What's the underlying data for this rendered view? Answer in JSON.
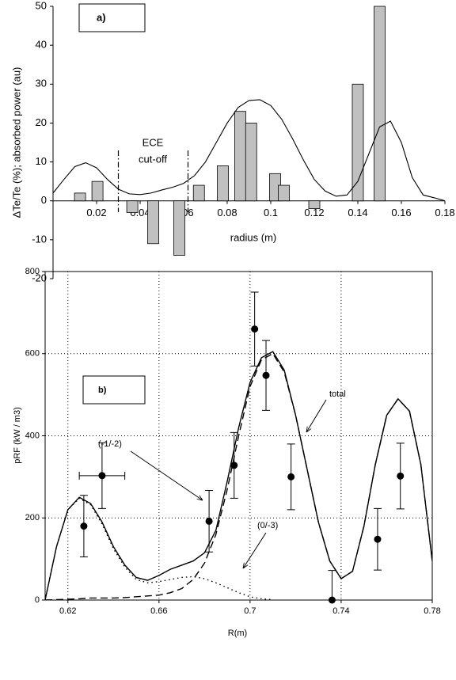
{
  "chart_data": [
    {
      "type": "bar",
      "label": "a)",
      "xlabel": "radius (m)",
      "ylabel": "ΔTe/Te (%); absorbed power (au)",
      "annotation": [
        "ECE",
        "cut-off"
      ],
      "x": [
        0.0124,
        0.0204,
        0.0364,
        0.046,
        0.058,
        0.067,
        0.078,
        0.086,
        0.091,
        0.102,
        0.106,
        0.12,
        0.14,
        0.15
      ],
      "values": [
        2,
        5,
        -3,
        -11,
        -14,
        4,
        9,
        23,
        20,
        7,
        4,
        -2,
        30,
        50
      ],
      "color": "#c0c0c0",
      "line_x": [
        0,
        0.005,
        0.01,
        0.015,
        0.02,
        0.025,
        0.03,
        0.035,
        0.04,
        0.045,
        0.05,
        0.055,
        0.06,
        0.065,
        0.07,
        0.075,
        0.08,
        0.085,
        0.09,
        0.095,
        0.1,
        0.105,
        0.11,
        0.115,
        0.12,
        0.125,
        0.13,
        0.135,
        0.14,
        0.145,
        0.15,
        0.155,
        0.16,
        0.165,
        0.17,
        0.175,
        0.18
      ],
      "line_values": [
        2,
        5.5,
        8.8,
        9.8,
        8.5,
        5.5,
        3,
        1.8,
        1.6,
        2,
        2.8,
        3.5,
        4.5,
        6.5,
        10,
        15,
        20,
        24,
        25.8,
        26,
        24.5,
        21,
        16,
        10.5,
        5.5,
        2.5,
        1.2,
        1.5,
        5,
        12,
        19,
        20.5,
        15,
        6,
        1.5,
        0.8,
        0
      ],
      "line_color": "#000000",
      "vlines": [
        0.03,
        0.062
      ],
      "xlim": [
        0,
        0.18
      ],
      "xticks": [
        0.02,
        0.04,
        0.06,
        0.08,
        0.1,
        0.12,
        0.14,
        0.16,
        0.18
      ],
      "ylim": [
        -20,
        50
      ],
      "yticks": [
        -20,
        -10,
        0,
        10,
        20,
        30,
        40,
        50
      ]
    },
    {
      "type": "line",
      "label": "b)",
      "xlabel": "R(m)",
      "ylabel": "pRF (kW / m3)",
      "grid": true,
      "x": [
        0.61,
        0.615,
        0.62,
        0.625,
        0.63,
        0.635,
        0.64,
        0.645,
        0.65,
        0.655,
        0.66,
        0.665,
        0.67,
        0.675,
        0.68,
        0.685,
        0.69,
        0.695,
        0.7,
        0.705,
        0.71,
        0.715,
        0.72,
        0.725,
        0.73,
        0.735,
        0.74,
        0.745,
        0.75,
        0.755,
        0.76,
        0.765,
        0.77,
        0.775,
        0.78
      ],
      "series": [
        {
          "name": "total",
          "color": "#000000",
          "dash": "solid",
          "values": [
            0,
            130,
            220,
            250,
            235,
            190,
            130,
            85,
            55,
            48,
            60,
            75,
            85,
            95,
            115,
            170,
            290,
            420,
            530,
            590,
            605,
            560,
            450,
            320,
            190,
            95,
            52,
            70,
            180,
            330,
            450,
            490,
            460,
            330,
            95
          ]
        },
        {
          "name": "(-1/-2)",
          "color": "#000000",
          "dash": "dashed",
          "values": [
            0,
            1,
            2,
            3,
            5,
            5,
            5,
            6,
            8,
            10,
            12,
            18,
            28,
            50,
            90,
            160,
            270,
            400,
            520,
            585,
            600,
            555,
            450,
            320,
            190,
            95,
            52,
            70,
            180,
            330,
            450,
            490,
            460,
            330,
            95
          ]
        },
        {
          "name": "(0/-3)",
          "color": "#000000",
          "dash": "dotted",
          "values": [
            0,
            130,
            220,
            248,
            232,
            185,
            125,
            80,
            50,
            42,
            45,
            50,
            55,
            57,
            52,
            42,
            30,
            18,
            8,
            3,
            1,
            null,
            null,
            null,
            null,
            null,
            null,
            null,
            null,
            null,
            null,
            null,
            null,
            null,
            null
          ]
        }
      ],
      "points": {
        "x": [
          0.627,
          0.635,
          0.682,
          0.693,
          0.702,
          0.707,
          0.718,
          0.736,
          0.756,
          0.766
        ],
        "values": [
          180,
          303,
          192,
          328,
          660,
          547,
          300,
          0,
          148,
          302
        ],
        "yerr": [
          75,
          80,
          75,
          80,
          90,
          85,
          80,
          72,
          75,
          80
        ],
        "xerr": [
          null,
          0.01,
          null,
          null,
          null,
          null,
          null,
          null,
          null,
          null
        ]
      },
      "xlim": [
        0.61,
        0.78
      ],
      "xticks": [
        0.62,
        0.66,
        0.7,
        0.74,
        0.78
      ],
      "ylim": [
        0,
        800
      ],
      "yticks": [
        0,
        200,
        400,
        600,
        800
      ]
    }
  ]
}
